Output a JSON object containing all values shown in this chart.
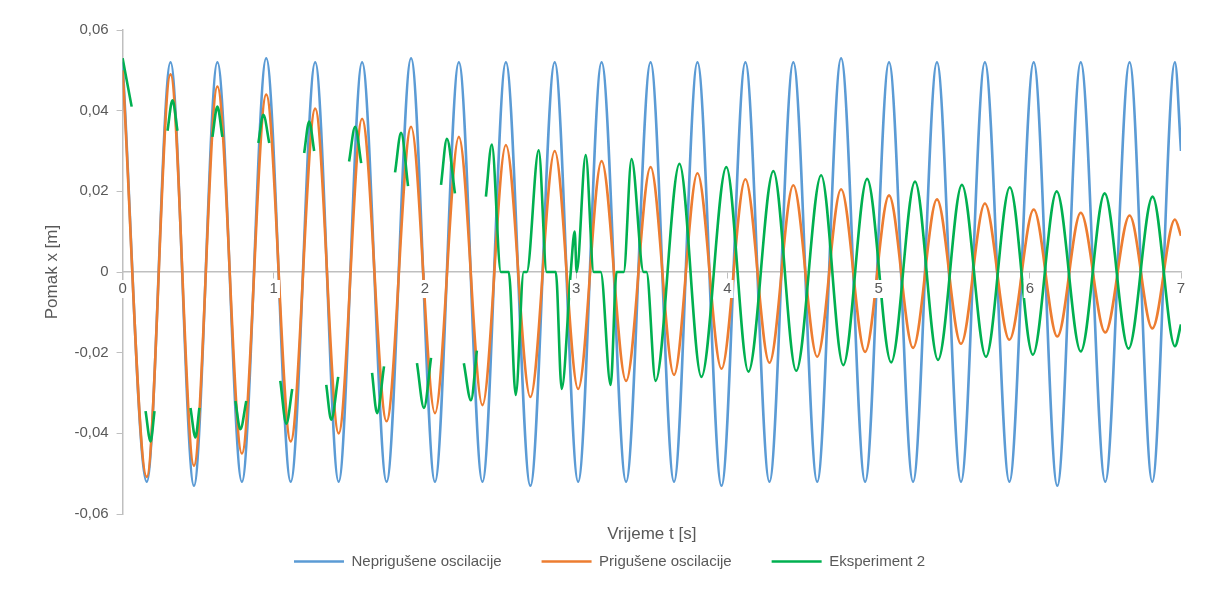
{
  "chart_data": {
    "type": "line",
    "xlabel": "Vrijeme t [s]",
    "ylabel": "Pomak x [m]",
    "xlim": [
      0,
      7
    ],
    "xticks": [
      0,
      1,
      2,
      3,
      4,
      5,
      6,
      7
    ],
    "ylim": [
      -0.06,
      0.06
    ],
    "yticks": [
      {
        "value": -0.06,
        "label": "-0,06"
      },
      {
        "value": -0.04,
        "label": "-0,04"
      },
      {
        "value": -0.02,
        "label": "-0,02"
      },
      {
        "value": 0,
        "label": "0"
      },
      {
        "value": 0.02,
        "label": "0,02"
      },
      {
        "value": 0.04,
        "label": "0,04"
      },
      {
        "value": 0.06,
        "label": "0,06"
      }
    ],
    "grid": false,
    "legend": "bottom",
    "marker": "none",
    "line_style": "solid",
    "series": [
      {
        "name": "Neprigušene oscilacije",
        "color": "#5b9bd5",
        "x": [
          0,
          0.16,
          0.317,
          0.472,
          0.627,
          0.789,
          0.95,
          1.112,
          1.274,
          1.429,
          1.584,
          1.746,
          1.908,
          2.066,
          2.224,
          2.38,
          2.535,
          2.697,
          2.858,
          3.013,
          3.168,
          3.33,
          3.492,
          3.647,
          3.802,
          3.961,
          4.119,
          4.278,
          4.436,
          4.594,
          4.752,
          4.911,
          5.069,
          5.228,
          5.386,
          5.545,
          5.703,
          5.865,
          6.026,
          6.182,
          6.337,
          6.499,
          6.66,
          6.81,
          6.96,
          7
        ],
        "values": [
          0.052,
          -0.052,
          0.052,
          -0.053,
          0.052,
          -0.052,
          0.053,
          -0.052,
          0.052,
          -0.052,
          0.052,
          -0.052,
          0.053,
          -0.052,
          0.052,
          -0.052,
          0.052,
          -0.053,
          0.052,
          -0.052,
          0.052,
          -0.052,
          0.052,
          -0.052,
          0.052,
          -0.053,
          0.052,
          -0.052,
          0.052,
          -0.052,
          0.053,
          -0.052,
          0.052,
          -0.052,
          0.052,
          -0.052,
          0.052,
          -0.052,
          0.052,
          -0.053,
          0.052,
          -0.052,
          0.052,
          -0.052,
          0.052,
          0.03
        ]
      },
      {
        "name": "Prigušene oscilacije",
        "color": "#ed7d31",
        "x": [
          0,
          0.16,
          0.317,
          0.472,
          0.627,
          0.789,
          0.95,
          1.112,
          1.274,
          1.429,
          1.584,
          1.746,
          1.908,
          2.066,
          2.224,
          2.38,
          2.535,
          2.697,
          2.858,
          3.013,
          3.168,
          3.33,
          3.492,
          3.647,
          3.802,
          3.961,
          4.119,
          4.278,
          4.436,
          4.594,
          4.752,
          4.911,
          5.069,
          5.228,
          5.386,
          5.545,
          5.703,
          5.865,
          6.026,
          6.182,
          6.337,
          6.499,
          6.66,
          6.81,
          6.96,
          7
        ],
        "values": [
          0.05,
          -0.0508,
          0.049,
          -0.048,
          0.046,
          -0.045,
          0.044,
          -0.042,
          0.0405,
          -0.04,
          0.038,
          -0.037,
          0.036,
          -0.035,
          0.0335,
          -0.033,
          0.0315,
          -0.031,
          0.03,
          -0.029,
          0.0275,
          -0.027,
          0.026,
          -0.0255,
          0.0245,
          -0.024,
          0.023,
          -0.0225,
          0.0215,
          -0.021,
          0.0205,
          -0.0198,
          0.019,
          -0.0188,
          0.018,
          -0.0178,
          0.017,
          -0.0168,
          0.0155,
          -0.016,
          0.0147,
          -0.015,
          0.014,
          -0.014,
          0.013,
          0.009
        ]
      },
      {
        "name": "Eksperiment 2",
        "color": "#00b050",
        "x": [
          0,
          0.06,
          0.1,
          0.152,
          0.185,
          0.211,
          0.25,
          0.297,
          0.33,
          0.363,
          0.4,
          0.449,
          0.482,
          0.508,
          0.55,
          0.594,
          0.627,
          0.66,
          0.7,
          0.746,
          0.779,
          0.818,
          0.86,
          0.898,
          0.931,
          0.97,
          1.0,
          1.043,
          1.083,
          1.122,
          1.16,
          1.201,
          1.234,
          1.267,
          1.3,
          1.347,
          1.38,
          1.426,
          1.46,
          1.498,
          1.538,
          1.578,
          1.61,
          1.65,
          1.683,
          1.729,
          1.77,
          1.802,
          1.842,
          1.888,
          1.92,
          1.947,
          1.993,
          2.04,
          2.07,
          2.106,
          2.145,
          2.198,
          2.23,
          2.257,
          2.304,
          2.343,
          2.37,
          2.403,
          2.442,
          2.502,
          2.554,
          2.6,
          2.653,
          2.673,
          2.752,
          2.805,
          2.865,
          2.904,
          2.964,
          2.99,
          3.003,
          3.063,
          3.116,
          3.162,
          3.228,
          3.267,
          3.314,
          3.366,
          3.446,
          3.465,
          3.525,
          3.683,
          3.828,
          3.993,
          4.139,
          4.304,
          4.455,
          4.62,
          4.766,
          4.924,
          5.083,
          5.241,
          5.393,
          5.551,
          5.71,
          5.868,
          6.02,
          6.178,
          6.337,
          6.495,
          6.653,
          6.812,
          6.96,
          7
        ],
        "values": [
          0.053,
          0.041,
          null,
          -0.0345,
          -0.042,
          -0.0345,
          null,
          0.035,
          0.0426,
          0.035,
          null,
          -0.0337,
          -0.041,
          -0.0337,
          null,
          0.0335,
          0.041,
          0.0335,
          null,
          -0.032,
          -0.039,
          -0.032,
          null,
          0.032,
          0.039,
          0.032,
          null,
          -0.027,
          -0.0376,
          -0.029,
          null,
          0.0295,
          0.0373,
          0.03,
          null,
          -0.028,
          -0.0366,
          -0.026,
          null,
          0.0274,
          0.036,
          0.027,
          null,
          -0.025,
          -0.035,
          -0.0234,
          null,
          0.0247,
          0.0345,
          0.0213,
          null,
          -0.0226,
          -0.0337,
          -0.0213,
          null,
          0.0216,
          0.033,
          0.0195,
          null,
          -0.0226,
          -0.0318,
          -0.0195,
          null,
          0.0187,
          0.0316,
          0,
          0,
          -0.0305,
          0,
          0,
          0.0302,
          0,
          0,
          -0.029,
          0,
          0.01,
          0,
          0.029,
          0,
          0,
          -0.028,
          0,
          0,
          0.028,
          0,
          0,
          -0.027,
          0.0268,
          -0.026,
          0.026,
          -0.0247,
          0.025,
          -0.0245,
          0.024,
          -0.0231,
          0.0231,
          -0.0224,
          0.0224,
          -0.0218,
          0.0216,
          -0.021,
          0.021,
          -0.0205,
          0.02,
          -0.0197,
          0.0195,
          -0.019,
          0.0187,
          -0.0184,
          -0.013
        ]
      }
    ]
  }
}
